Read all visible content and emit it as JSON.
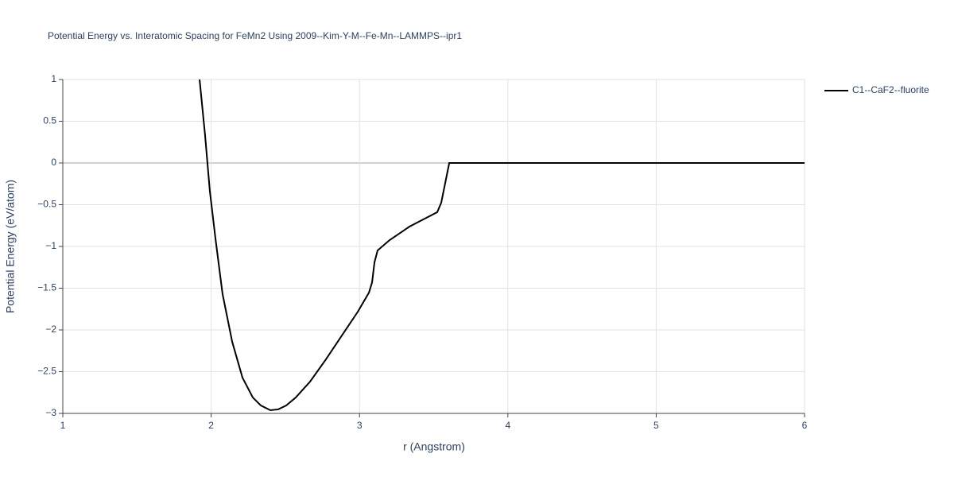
{
  "chart_data": {
    "type": "line",
    "title": "Potential Energy vs. Interatomic Spacing for FeMn2 Using 2009--Kim-Y-M--Fe-Mn--LAMMPS--ipr1",
    "x_label": "r (Angstrom)",
    "y_label": "Potential Energy (eV/atom)",
    "x": [
      1.922,
      1.959,
      1.991,
      2.029,
      2.077,
      2.142,
      2.211,
      2.281,
      2.335,
      2.399,
      2.452,
      2.506,
      2.57,
      2.667,
      2.774,
      2.881,
      2.989,
      3.064,
      3.085,
      3.101,
      3.122,
      3.203,
      3.337,
      3.524,
      3.551,
      3.578,
      3.605,
      6
    ],
    "series": [
      {
        "name": "C1--CaF2--fluorite",
        "color": "#000000",
        "values": [
          1.0,
          0.333,
          -0.333,
          -0.905,
          -1.571,
          -2.143,
          -2.571,
          -2.81,
          -2.905,
          -2.962,
          -2.952,
          -2.905,
          -2.81,
          -2.619,
          -2.352,
          -2.067,
          -1.781,
          -1.552,
          -1.429,
          -1.19,
          -1.048,
          -0.924,
          -0.762,
          -0.59,
          -0.476,
          -0.238,
          0,
          0
        ]
      }
    ],
    "xlim": [
      1,
      6
    ],
    "xticks": [
      1,
      2,
      3,
      4,
      5,
      6
    ],
    "ylim": [
      -3,
      1
    ],
    "yticks": [
      {
        "value": -3,
        "label": "−3"
      },
      {
        "value": -2.5,
        "label": "−2.5"
      },
      {
        "value": -2,
        "label": "−2"
      },
      {
        "value": -1.5,
        "label": "−1.5"
      },
      {
        "value": -1,
        "label": "−1"
      },
      {
        "value": -0.5,
        "label": "−0.5"
      },
      0,
      0.5,
      1
    ],
    "grid": true,
    "legend": "right"
  }
}
